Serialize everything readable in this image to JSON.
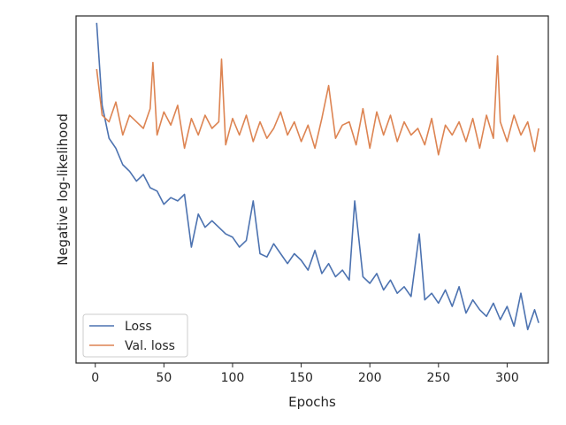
{
  "chart_data": {
    "type": "line",
    "xlabel": "Epochs",
    "ylabel": "Negative log-likelihood",
    "xlim": [
      -14,
      330
    ],
    "ylim": [
      0,
      1
    ],
    "xticks": [
      0,
      50,
      100,
      150,
      200,
      250,
      300
    ],
    "yticks_visible": false,
    "grid": false,
    "legend_position": "lower-left",
    "series": [
      {
        "name": "Loss",
        "color": "#4c72b0",
        "points": [
          [
            1,
            1.0
          ],
          [
            5,
            0.75
          ],
          [
            10,
            0.65
          ],
          [
            15,
            0.62
          ],
          [
            20,
            0.57
          ],
          [
            25,
            0.55
          ],
          [
            30,
            0.52
          ],
          [
            35,
            0.54
          ],
          [
            40,
            0.5
          ],
          [
            45,
            0.49
          ],
          [
            50,
            0.45
          ],
          [
            55,
            0.47
          ],
          [
            60,
            0.46
          ],
          [
            65,
            0.48
          ],
          [
            70,
            0.32
          ],
          [
            75,
            0.42
          ],
          [
            80,
            0.38
          ],
          [
            85,
            0.4
          ],
          [
            90,
            0.38
          ],
          [
            95,
            0.36
          ],
          [
            100,
            0.35
          ],
          [
            105,
            0.32
          ],
          [
            110,
            0.34
          ],
          [
            115,
            0.46
          ],
          [
            120,
            0.3
          ],
          [
            125,
            0.29
          ],
          [
            130,
            0.33
          ],
          [
            135,
            0.3
          ],
          [
            140,
            0.27
          ],
          [
            145,
            0.3
          ],
          [
            150,
            0.28
          ],
          [
            155,
            0.25
          ],
          [
            160,
            0.31
          ],
          [
            165,
            0.24
          ],
          [
            170,
            0.27
          ],
          [
            175,
            0.23
          ],
          [
            180,
            0.25
          ],
          [
            185,
            0.22
          ],
          [
            189,
            0.46
          ],
          [
            195,
            0.23
          ],
          [
            200,
            0.21
          ],
          [
            205,
            0.24
          ],
          [
            210,
            0.19
          ],
          [
            215,
            0.22
          ],
          [
            220,
            0.18
          ],
          [
            225,
            0.2
          ],
          [
            230,
            0.17
          ],
          [
            236,
            0.36
          ],
          [
            240,
            0.16
          ],
          [
            245,
            0.18
          ],
          [
            250,
            0.15
          ],
          [
            255,
            0.19
          ],
          [
            260,
            0.14
          ],
          [
            265,
            0.2
          ],
          [
            270,
            0.12
          ],
          [
            275,
            0.16
          ],
          [
            280,
            0.13
          ],
          [
            285,
            0.11
          ],
          [
            290,
            0.15
          ],
          [
            295,
            0.1
          ],
          [
            300,
            0.14
          ],
          [
            305,
            0.08
          ],
          [
            310,
            0.18
          ],
          [
            315,
            0.07
          ],
          [
            320,
            0.13
          ],
          [
            323,
            0.09
          ]
        ]
      },
      {
        "name": "Val. loss",
        "color": "#dd8452",
        "points": [
          [
            1,
            0.86
          ],
          [
            5,
            0.72
          ],
          [
            10,
            0.7
          ],
          [
            15,
            0.76
          ],
          [
            20,
            0.66
          ],
          [
            25,
            0.72
          ],
          [
            30,
            0.7
          ],
          [
            35,
            0.68
          ],
          [
            40,
            0.74
          ],
          [
            42,
            0.88
          ],
          [
            45,
            0.66
          ],
          [
            50,
            0.73
          ],
          [
            55,
            0.69
          ],
          [
            60,
            0.75
          ],
          [
            65,
            0.62
          ],
          [
            70,
            0.71
          ],
          [
            75,
            0.66
          ],
          [
            80,
            0.72
          ],
          [
            85,
            0.68
          ],
          [
            90,
            0.7
          ],
          [
            92,
            0.89
          ],
          [
            95,
            0.63
          ],
          [
            100,
            0.71
          ],
          [
            105,
            0.66
          ],
          [
            110,
            0.72
          ],
          [
            115,
            0.64
          ],
          [
            120,
            0.7
          ],
          [
            125,
            0.65
          ],
          [
            130,
            0.68
          ],
          [
            135,
            0.73
          ],
          [
            140,
            0.66
          ],
          [
            145,
            0.7
          ],
          [
            150,
            0.64
          ],
          [
            155,
            0.69
          ],
          [
            160,
            0.62
          ],
          [
            165,
            0.71
          ],
          [
            170,
            0.81
          ],
          [
            175,
            0.65
          ],
          [
            180,
            0.69
          ],
          [
            185,
            0.7
          ],
          [
            190,
            0.63
          ],
          [
            195,
            0.74
          ],
          [
            200,
            0.62
          ],
          [
            205,
            0.73
          ],
          [
            210,
            0.66
          ],
          [
            215,
            0.72
          ],
          [
            220,
            0.64
          ],
          [
            225,
            0.7
          ],
          [
            230,
            0.66
          ],
          [
            235,
            0.68
          ],
          [
            240,
            0.63
          ],
          [
            245,
            0.71
          ],
          [
            250,
            0.6
          ],
          [
            255,
            0.69
          ],
          [
            260,
            0.66
          ],
          [
            265,
            0.7
          ],
          [
            270,
            0.64
          ],
          [
            275,
            0.71
          ],
          [
            280,
            0.62
          ],
          [
            285,
            0.72
          ],
          [
            290,
            0.65
          ],
          [
            293,
            0.9
          ],
          [
            295,
            0.7
          ],
          [
            300,
            0.64
          ],
          [
            305,
            0.72
          ],
          [
            310,
            0.66
          ],
          [
            315,
            0.7
          ],
          [
            320,
            0.61
          ],
          [
            323,
            0.68
          ]
        ]
      }
    ]
  }
}
